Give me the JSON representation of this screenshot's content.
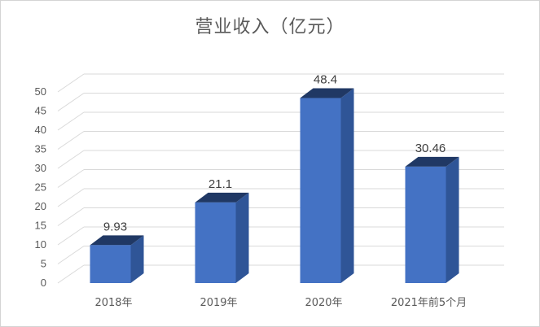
{
  "chart_data": {
    "type": "bar",
    "title": "营业收入（亿元）",
    "categories": [
      "2018年",
      "2019年",
      "2020年",
      "2021年前5个月"
    ],
    "values": [
      9.93,
      21.1,
      48.4,
      30.46
    ],
    "data_labels": [
      "9.93",
      "21.1",
      "48.4",
      "30.46"
    ],
    "y_ticks": [
      "0",
      "5",
      "10",
      "15",
      "20",
      "25",
      "30",
      "35",
      "40",
      "45",
      "50"
    ],
    "ylim": [
      0,
      50
    ],
    "grid": true,
    "three_d": true,
    "xlabel": "",
    "ylabel": "",
    "colors": {
      "bar_front": "#4472c4",
      "bar_side": "#2f5597",
      "bar_top": "#203864",
      "grid": "#d9d9d9",
      "text": "#595959",
      "label": "#404040"
    }
  }
}
